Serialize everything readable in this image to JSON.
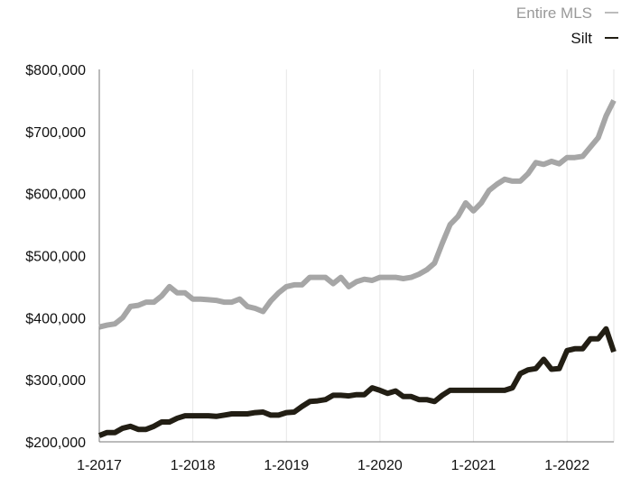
{
  "chart_data": {
    "type": "line",
    "title": "",
    "xlabel": "",
    "ylabel": "",
    "ylim": [
      200000,
      800000
    ],
    "xlim": [
      "2017-01",
      "2022-07"
    ],
    "y_ticks": [
      "$200,000",
      "$300,000",
      "$400,000",
      "$500,000",
      "$600,000",
      "$700,000",
      "$800,000"
    ],
    "x_ticks": [
      "1-2017",
      "1-2018",
      "1-2019",
      "1-2020",
      "1-2021",
      "1-2022"
    ],
    "grid": "vertical",
    "legend_position": "top-right",
    "x": [
      "2017-01",
      "2017-02",
      "2017-03",
      "2017-04",
      "2017-05",
      "2017-06",
      "2017-07",
      "2017-08",
      "2017-09",
      "2017-10",
      "2017-11",
      "2017-12",
      "2018-01",
      "2018-02",
      "2018-03",
      "2018-04",
      "2018-05",
      "2018-06",
      "2018-07",
      "2018-08",
      "2018-09",
      "2018-10",
      "2018-11",
      "2018-12",
      "2019-01",
      "2019-02",
      "2019-03",
      "2019-04",
      "2019-05",
      "2019-06",
      "2019-07",
      "2019-08",
      "2019-09",
      "2019-10",
      "2019-11",
      "2019-12",
      "2020-01",
      "2020-02",
      "2020-03",
      "2020-04",
      "2020-05",
      "2020-06",
      "2020-07",
      "2020-08",
      "2020-09",
      "2020-10",
      "2020-11",
      "2020-12",
      "2021-01",
      "2021-02",
      "2021-03",
      "2021-04",
      "2021-05",
      "2021-06",
      "2021-07",
      "2021-08",
      "2021-09",
      "2021-10",
      "2021-11",
      "2021-12",
      "2022-01",
      "2022-02",
      "2022-03",
      "2022-04",
      "2022-05",
      "2022-06",
      "2022-07"
    ],
    "series": [
      {
        "name": "Entire MLS",
        "color": "#a6a6a6",
        "values": [
          385000,
          388000,
          390000,
          400000,
          418000,
          420000,
          425000,
          425000,
          435000,
          450000,
          440000,
          440000,
          430000,
          430000,
          429000,
          428000,
          425000,
          425000,
          430000,
          418000,
          415000,
          410000,
          427000,
          440000,
          450000,
          453000,
          453000,
          465000,
          465000,
          465000,
          455000,
          465000,
          450000,
          458000,
          462000,
          460000,
          465000,
          465000,
          465000,
          463000,
          465000,
          470000,
          477000,
          488000,
          520000,
          550000,
          563000,
          585000,
          572000,
          585000,
          605000,
          615000,
          623000,
          620000,
          620000,
          632000,
          650000,
          647000,
          652000,
          648000,
          658000,
          658000,
          660000,
          675000,
          690000,
          725000,
          750000
        ]
      },
      {
        "name": "Silt",
        "color": "#221e14",
        "values": [
          210000,
          215000,
          215000,
          222000,
          225000,
          220000,
          220000,
          225000,
          232000,
          232000,
          238000,
          242000,
          242000,
          242000,
          242000,
          241000,
          243000,
          245000,
          245000,
          245000,
          247000,
          248000,
          243000,
          243000,
          247000,
          248000,
          257000,
          265000,
          266000,
          268000,
          275000,
          275000,
          274000,
          276000,
          276000,
          287000,
          283000,
          278000,
          282000,
          273000,
          273000,
          268000,
          268000,
          265000,
          275000,
          283000,
          283000,
          283000,
          283000,
          283000,
          283000,
          283000,
          283000,
          287000,
          310000,
          316000,
          318000,
          333000,
          317000,
          318000,
          347000,
          350000,
          350000,
          366000,
          366000,
          382000,
          345000
        ]
      }
    ]
  }
}
